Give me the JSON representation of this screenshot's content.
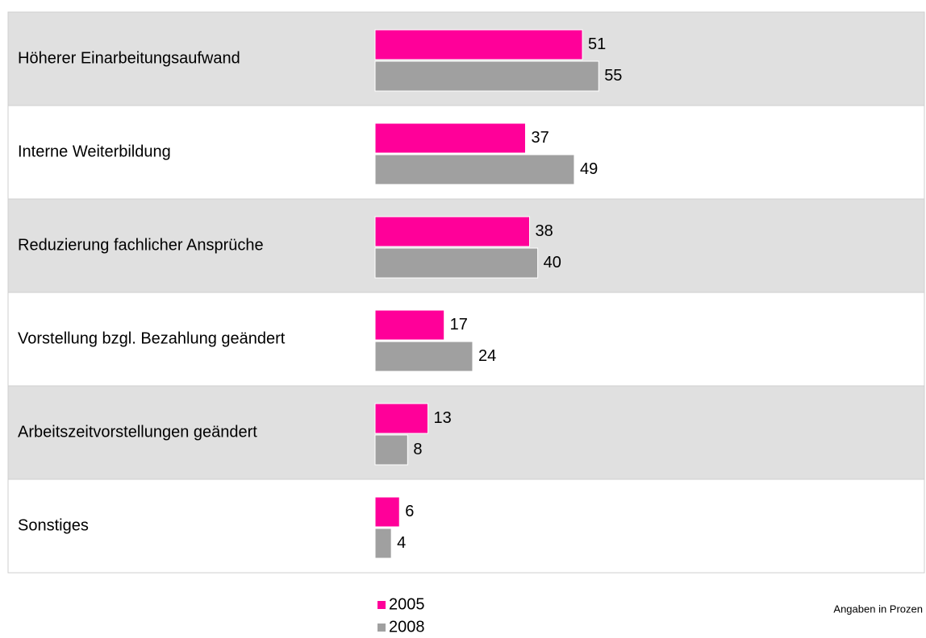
{
  "chart_data": {
    "type": "bar",
    "orientation": "horizontal",
    "categories": [
      "Höherer Einarbeitungsaufwand",
      "Interne Weiterbildung",
      "Reduzierung fachlicher Ansprüche",
      "Vorstellung bzgl. Bezahlung geändert",
      "Arbeitszeitvorstellungen geändert",
      "Sonstiges"
    ],
    "series": [
      {
        "name": "2005",
        "color": "#ff0099",
        "values": [
          51,
          37,
          38,
          17,
          13,
          6
        ]
      },
      {
        "name": "2008",
        "color": "#a0a0a0",
        "values": [
          55,
          49,
          40,
          24,
          8,
          4
        ]
      }
    ],
    "note": "Angaben in Prozen"
  }
}
